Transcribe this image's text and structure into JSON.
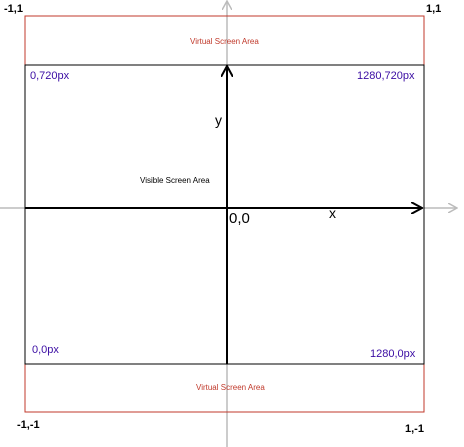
{
  "corners": {
    "top_left": "-1,1",
    "top_right": "1,1",
    "bottom_left": "-1,-1",
    "bottom_right": "1,-1"
  },
  "pixel_corners": {
    "top_left": "0,720px",
    "top_right": "1280,720px",
    "bottom_left": "0,0px",
    "bottom_right": "1280,0px"
  },
  "areas": {
    "virtual_top": "Virtual Screen Area",
    "virtual_bottom": "Virtual Screen Area",
    "visible": "Visible Screen Area"
  },
  "axes": {
    "x": "x",
    "y": "y",
    "origin": "0,0"
  },
  "colors": {
    "virtual_border": "#c0392b",
    "virtual_text": "#c0392b",
    "pixel_text": "#3a0ca3",
    "background_axis": "#bbbbbb",
    "foreground_axis": "#000000"
  }
}
